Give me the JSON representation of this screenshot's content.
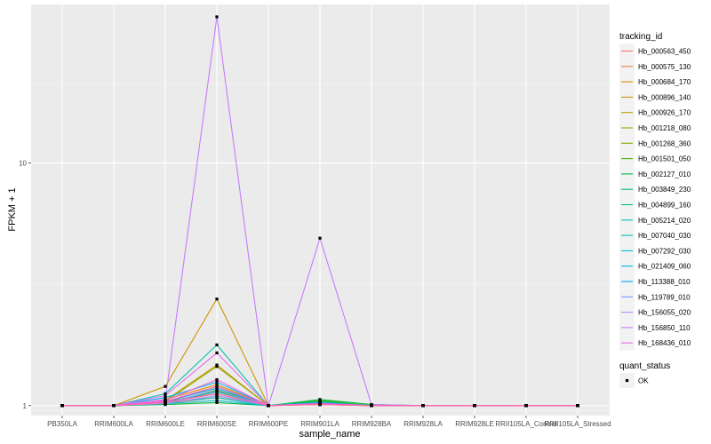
{
  "chart_data": {
    "type": "line",
    "xlabel": "sample_name",
    "ylabel": "FPKM + 1",
    "y_scale": "log10",
    "ylim": [
      0.91,
      45
    ],
    "y_ticks": [
      1,
      10
    ],
    "y_tick_labels": [
      "1",
      "10"
    ],
    "grid": true,
    "panel_background": "#ebebeb",
    "categories": [
      "PB350LA",
      "RRIM600LA",
      "RRIM600LE",
      "RRIM600SE",
      "RRIM600PE",
      "RRIM901LA",
      "RRIM928BA",
      "RRIM928LA",
      "RRIM928LE",
      "RRII105LA_Control",
      "RRII105LA_Stressed"
    ],
    "legend": {
      "position": "right",
      "color_title": "tracking_id",
      "shape_title": "quant_status",
      "shape_entries": [
        "OK"
      ]
    },
    "series": [
      {
        "name": "Hb_000563_450",
        "color": "#F8766D",
        "values": [
          1,
          1,
          1.04,
          1.12,
          1,
          1.01,
          1,
          1,
          1,
          1,
          1
        ]
      },
      {
        "name": "Hb_000575_130",
        "color": "#EE8044",
        "values": [
          1,
          1,
          1.02,
          1.08,
          1,
          1.01,
          1,
          1,
          1,
          1,
          1
        ]
      },
      {
        "name": "Hb_000684_170",
        "color": "#E08B00",
        "values": [
          1,
          1,
          1.06,
          1.22,
          1,
          1.02,
          1,
          1,
          1,
          1,
          1
        ]
      },
      {
        "name": "Hb_000896_140",
        "color": "#CD9600",
        "values": [
          1,
          1,
          1.2,
          2.75,
          1,
          1.02,
          1,
          1,
          1,
          1,
          1
        ]
      },
      {
        "name": "Hb_000926_170",
        "color": "#B79F00",
        "values": [
          1,
          1,
          1.05,
          1.47,
          1,
          1.03,
          1,
          1,
          1,
          1,
          1
        ]
      },
      {
        "name": "Hb_001218_080",
        "color": "#9DA700",
        "values": [
          1,
          1,
          1.04,
          1.45,
          1,
          1.02,
          1,
          1,
          1,
          1,
          1
        ]
      },
      {
        "name": "Hb_001268_360",
        "color": "#7CAE00",
        "values": [
          1,
          1,
          1.03,
          1.2,
          1,
          1.04,
          1,
          1,
          1,
          1,
          1
        ]
      },
      {
        "name": "Hb_001501_050",
        "color": "#49B500",
        "values": [
          1,
          1,
          1.02,
          1.16,
          1,
          1.05,
          1,
          1,
          1,
          1,
          1
        ]
      },
      {
        "name": "Hb_002127_010",
        "color": "#00BA38",
        "values": [
          1,
          1,
          1.01,
          1.03,
          1,
          1.06,
          1.01,
          1,
          1,
          1,
          1
        ]
      },
      {
        "name": "Hb_003849_230",
        "color": "#00BE67",
        "values": [
          1,
          1,
          1.02,
          1.1,
          1,
          1.04,
          1,
          1,
          1,
          1,
          1
        ]
      },
      {
        "name": "Hb_004899_160",
        "color": "#00C08B",
        "values": [
          1,
          1,
          1.03,
          1.14,
          1,
          1.03,
          1,
          1,
          1,
          1,
          1
        ]
      },
      {
        "name": "Hb_005214_020",
        "color": "#00C1AA",
        "values": [
          1,
          1,
          1.12,
          1.78,
          1,
          1.02,
          1,
          1,
          1,
          1,
          1
        ]
      },
      {
        "name": "Hb_007040_030",
        "color": "#00BFC4",
        "values": [
          1,
          1,
          1.03,
          1.08,
          1,
          1.03,
          1,
          1,
          1,
          1,
          1
        ]
      },
      {
        "name": "Hb_007292_030",
        "color": "#00BBDB",
        "values": [
          1,
          1,
          1.02,
          1.05,
          1,
          1.02,
          1,
          1,
          1,
          1,
          1
        ]
      },
      {
        "name": "Hb_021409_060",
        "color": "#00B4EF",
        "values": [
          1,
          1,
          1.08,
          1.25,
          1,
          1.02,
          1,
          1,
          1,
          1,
          1
        ]
      },
      {
        "name": "Hb_113388_010",
        "color": "#00A5FF",
        "values": [
          1,
          1,
          1.04,
          1.18,
          1,
          1.03,
          1,
          1,
          1,
          1,
          1
        ]
      },
      {
        "name": "Hb_119789_010",
        "color": "#7F96FF",
        "values": [
          1,
          1,
          1.03,
          1.15,
          1,
          1.02,
          1,
          1,
          1,
          1,
          1
        ]
      },
      {
        "name": "Hb_156055_020",
        "color": "#BB86FF",
        "values": [
          1,
          1,
          1.02,
          1.1,
          1,
          1.02,
          1,
          1,
          1,
          1,
          1
        ]
      },
      {
        "name": "Hb_156850_110",
        "color": "#C77CFF",
        "values": [
          1,
          1,
          1.06,
          40,
          1,
          4.9,
          1.01,
          1,
          1,
          1,
          1
        ]
      },
      {
        "name": "Hb_168436_010",
        "color": "#E76BF3",
        "values": [
          1,
          1,
          1.1,
          1.65,
          1,
          1.02,
          1,
          1,
          1,
          1,
          1
        ]
      },
      {
        "name": "",
        "color": "#F564E3",
        "values": [
          1,
          1,
          1.05,
          1.28,
          1,
          1.02,
          1,
          1,
          1,
          1,
          1
        ]
      },
      {
        "name": "",
        "color": "#FF61C3",
        "values": [
          1,
          1,
          1.04,
          1.2,
          1,
          1.02,
          1,
          1,
          1,
          1,
          1
        ]
      },
      {
        "name": "",
        "color": "#FF67A4",
        "values": [
          1,
          1,
          1.03,
          1.12,
          1,
          1.01,
          1,
          1,
          1,
          1,
          1
        ]
      }
    ]
  }
}
